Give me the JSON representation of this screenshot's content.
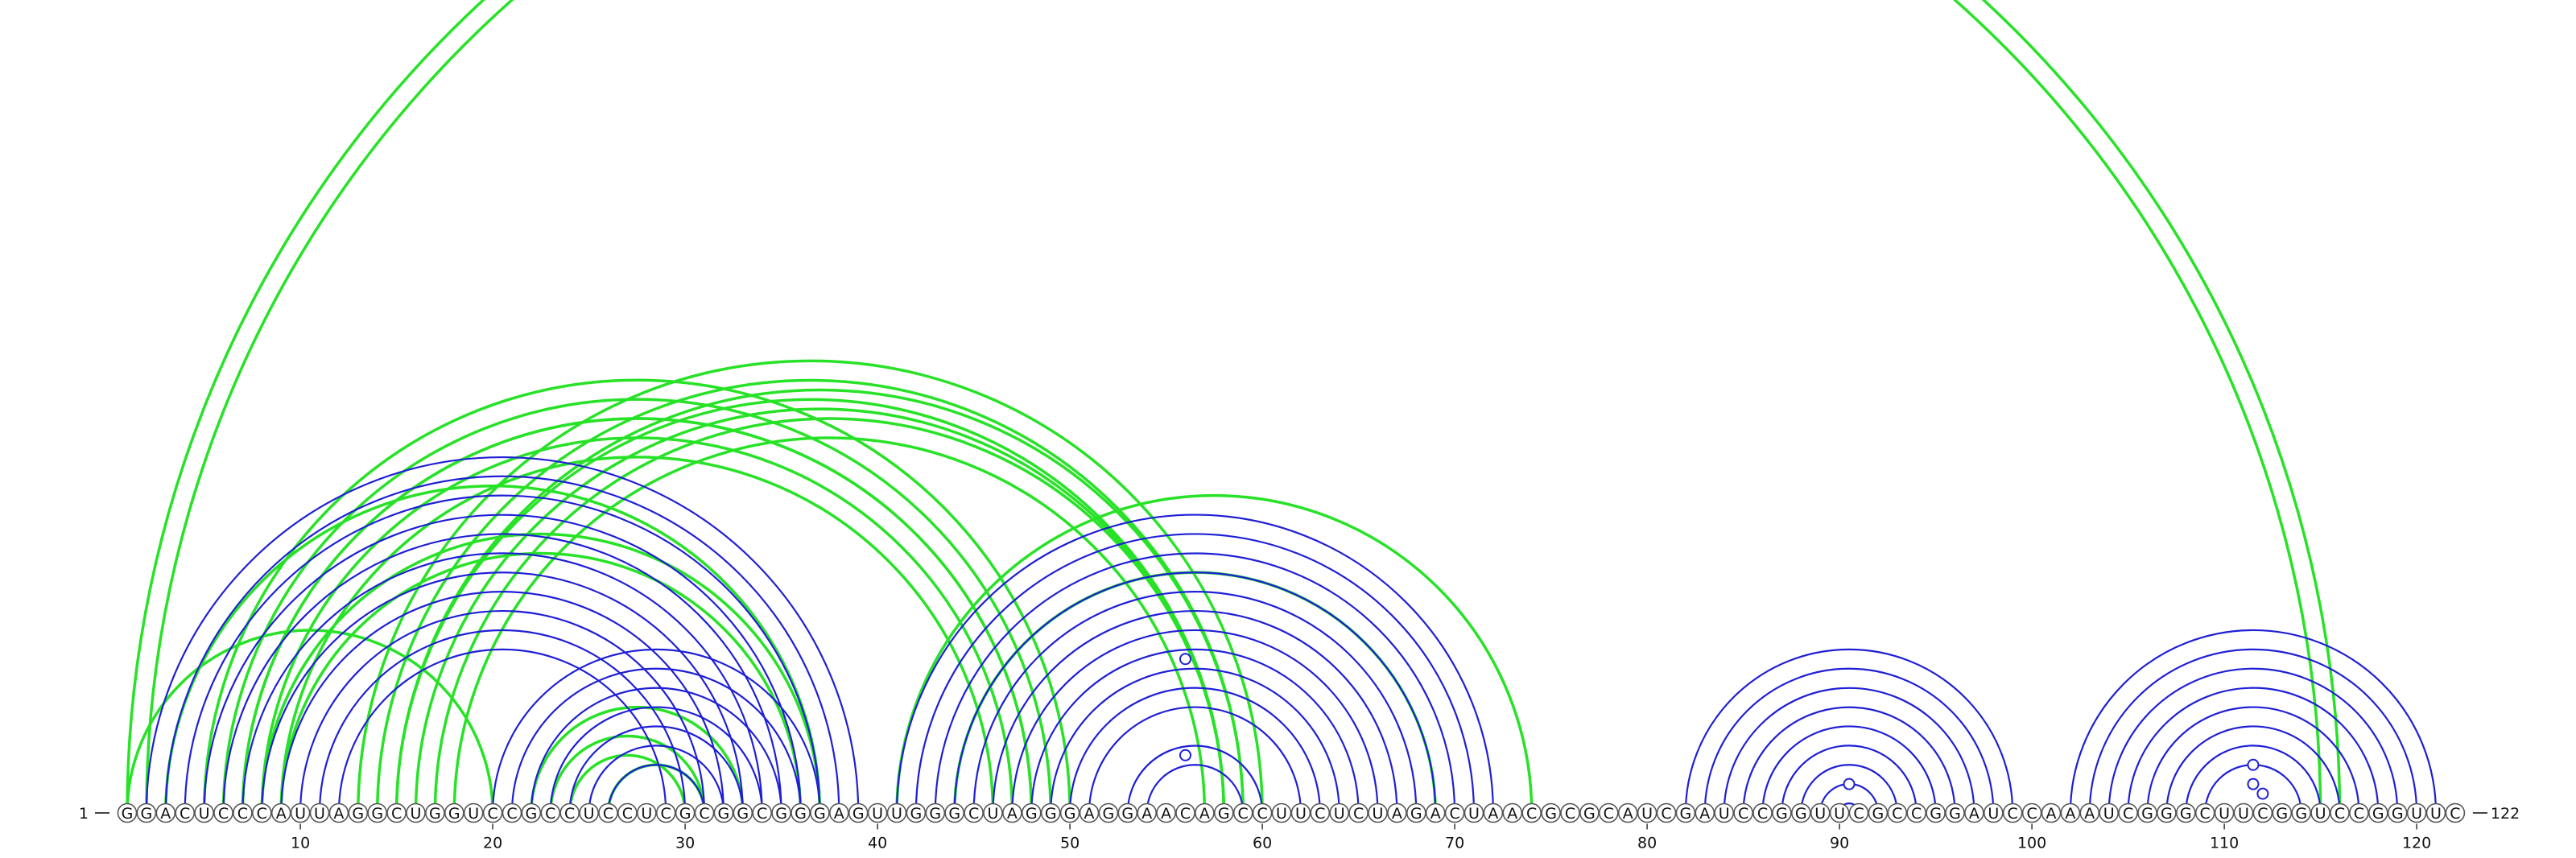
{
  "sequence": "GGACUCCCAUUAGGCUGGUCCGCCUCCUCGCGGCGGGAGUUGGGCUAGGGAGGAACAGCCUUCUCUAGACUAACGCGCAUCGAUCCGGUUCGCCGGAUCCAAAUCGGGCUUCGGUCCGGUUC",
  "start_label": "1",
  "end_label": "122",
  "ticks": [
    10,
    20,
    30,
    40,
    50,
    60,
    70,
    80,
    90,
    100,
    110,
    120
  ],
  "colors": {
    "blue": "#1f1fd6",
    "green": "#27e227",
    "backbone": "#444444"
  },
  "blue_helices": [
    {
      "i": 2,
      "j": 39,
      "n": 11,
      "bulges": []
    },
    {
      "i": 20,
      "j": 37,
      "n": 5,
      "bulges": []
    },
    {
      "i": 25,
      "j": 32,
      "n": 2,
      "bulges": []
    },
    {
      "i": 41,
      "j": 72,
      "n": 11,
      "bulges": [
        {
          "i": 48,
          "j": 64
        },
        {
          "i": 53,
          "j": 59
        }
      ]
    },
    {
      "i": 53,
      "j": 60,
      "n": 2,
      "bulges": []
    },
    {
      "i": 82,
      "j": 99,
      "n": 9,
      "bulges": [
        {
          "i": 89,
          "j": 92
        }
      ]
    },
    {
      "i": 102,
      "j": 121,
      "n": 8,
      "bulges": [
        {
          "i": 109,
          "j": 114
        },
        {
          "i": 110,
          "j": 113
        },
        {
          "i": 111,
          "j": 113
        }
      ]
    }
  ],
  "green_helices": [
    {
      "i": 1,
      "j": 116,
      "n": 2
    },
    {
      "i": 1,
      "j": 20,
      "n": 1
    },
    {
      "i": 3,
      "j": 37,
      "n": 1
    },
    {
      "i": 5,
      "j": 50,
      "n": 3
    },
    {
      "i": 7,
      "j": 48,
      "n": 3
    },
    {
      "i": 8,
      "j": 37,
      "n": 2
    },
    {
      "i": 13,
      "j": 60,
      "n": 3
    },
    {
      "i": 15,
      "j": 59,
      "n": 2
    },
    {
      "i": 17,
      "j": 58,
      "n": 2
    },
    {
      "i": 22,
      "j": 33,
      "n": 1
    },
    {
      "i": 23,
      "j": 31,
      "n": 2
    },
    {
      "i": 26,
      "j": 31,
      "n": 1
    },
    {
      "i": 41,
      "j": 74,
      "n": 1
    },
    {
      "i": 44,
      "j": 69,
      "n": 1
    }
  ]
}
